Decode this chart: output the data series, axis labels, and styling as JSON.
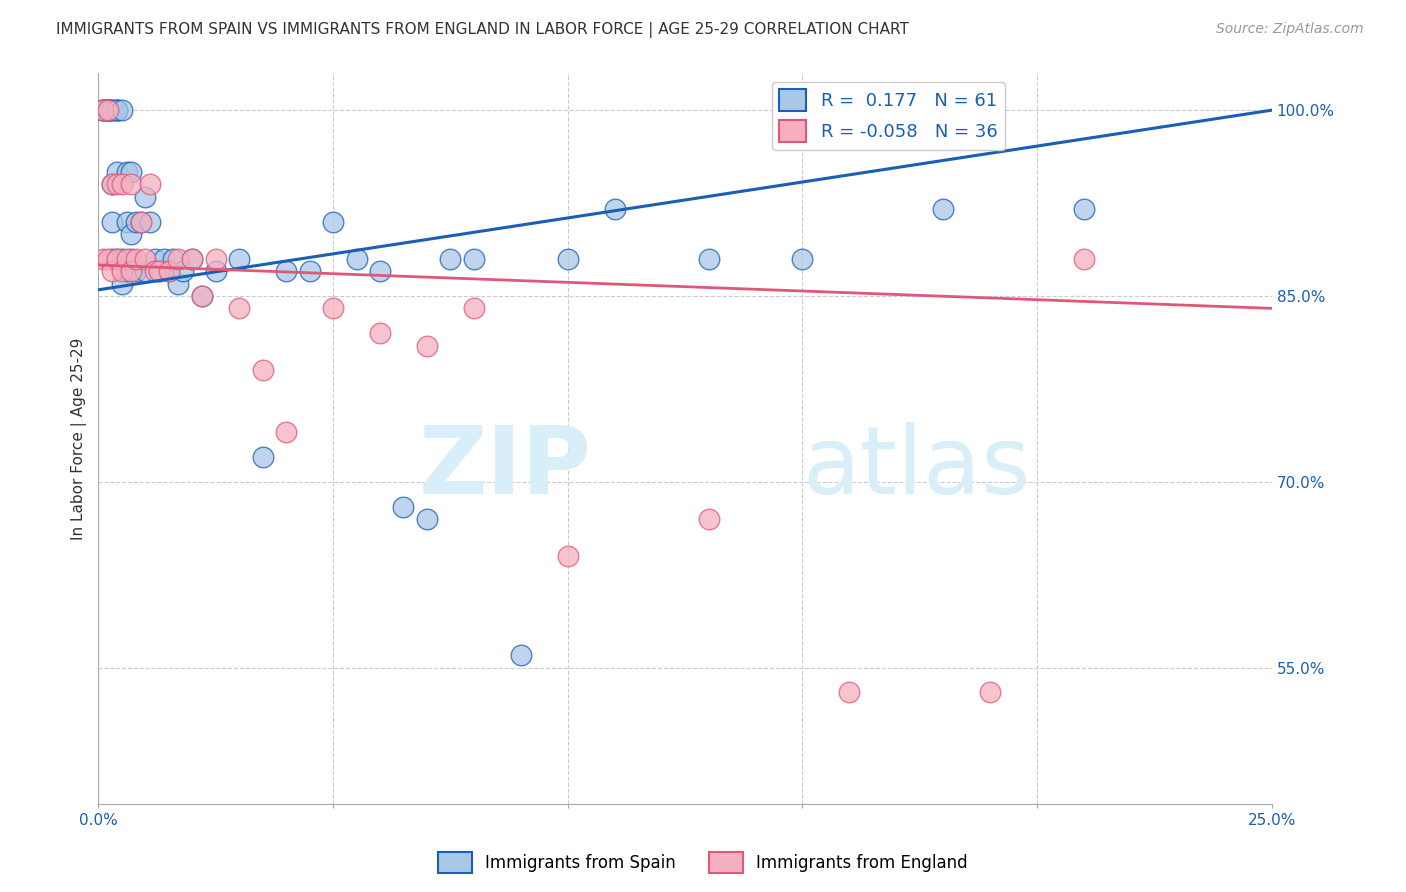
{
  "title": "IMMIGRANTS FROM SPAIN VS IMMIGRANTS FROM ENGLAND IN LABOR FORCE | AGE 25-29 CORRELATION CHART",
  "source": "Source: ZipAtlas.com",
  "ylabel": "In Labor Force | Age 25-29",
  "xlim": [
    0.0,
    0.25
  ],
  "ylim": [
    0.44,
    1.03
  ],
  "yticks_right": [
    0.55,
    0.7,
    0.85,
    1.0
  ],
  "ytick_labels_right": [
    "55.0%",
    "70.0%",
    "85.0%",
    "100.0%"
  ],
  "legend_r_spain": "0.177",
  "legend_n_spain": "61",
  "legend_r_england": "-0.058",
  "legend_n_england": "36",
  "color_spain": "#a8c8e8",
  "color_england": "#f4b0c0",
  "trendline_color_spain": "#1a5fb5",
  "trendline_color_england": "#e05878",
  "background_color": "#ffffff",
  "watermark_color": "#d8eef8",
  "spain_x": [
    0.001,
    0.001,
    0.001,
    0.002,
    0.002,
    0.002,
    0.002,
    0.002,
    0.003,
    0.003,
    0.003,
    0.003,
    0.003,
    0.004,
    0.004,
    0.004,
    0.004,
    0.004,
    0.005,
    0.005,
    0.005,
    0.006,
    0.006,
    0.006,
    0.007,
    0.007,
    0.007,
    0.008,
    0.008,
    0.009,
    0.01,
    0.01,
    0.011,
    0.012,
    0.013,
    0.014,
    0.015,
    0.016,
    0.017,
    0.018,
    0.02,
    0.022,
    0.025,
    0.03,
    0.035,
    0.04,
    0.045,
    0.05,
    0.055,
    0.06,
    0.065,
    0.07,
    0.075,
    0.08,
    0.09,
    0.1,
    0.11,
    0.13,
    0.15,
    0.18,
    0.21
  ],
  "spain_y": [
    1.0,
    1.0,
    1.0,
    1.0,
    1.0,
    1.0,
    1.0,
    1.0,
    1.0,
    1.0,
    0.94,
    0.91,
    0.88,
    1.0,
    1.0,
    1.0,
    0.95,
    0.88,
    1.0,
    0.88,
    0.86,
    0.95,
    0.91,
    0.87,
    0.95,
    0.9,
    0.88,
    0.91,
    0.87,
    0.91,
    0.93,
    0.87,
    0.91,
    0.88,
    0.87,
    0.88,
    0.87,
    0.88,
    0.86,
    0.87,
    0.88,
    0.85,
    0.87,
    0.88,
    0.72,
    0.87,
    0.87,
    0.91,
    0.88,
    0.87,
    0.68,
    0.67,
    0.88,
    0.88,
    0.56,
    0.88,
    0.92,
    0.88,
    0.88,
    0.92,
    0.92
  ],
  "england_x": [
    0.001,
    0.001,
    0.002,
    0.002,
    0.003,
    0.003,
    0.004,
    0.004,
    0.005,
    0.005,
    0.006,
    0.007,
    0.007,
    0.008,
    0.009,
    0.01,
    0.011,
    0.012,
    0.013,
    0.015,
    0.017,
    0.02,
    0.022,
    0.025,
    0.03,
    0.035,
    0.04,
    0.05,
    0.06,
    0.07,
    0.08,
    0.1,
    0.13,
    0.16,
    0.19,
    0.21
  ],
  "england_y": [
    1.0,
    0.88,
    1.0,
    0.88,
    0.94,
    0.87,
    0.94,
    0.88,
    0.94,
    0.87,
    0.88,
    0.94,
    0.87,
    0.88,
    0.91,
    0.88,
    0.94,
    0.87,
    0.87,
    0.87,
    0.88,
    0.88,
    0.85,
    0.88,
    0.84,
    0.79,
    0.74,
    0.84,
    0.82,
    0.81,
    0.84,
    0.64,
    0.67,
    0.53,
    0.53,
    0.88
  ]
}
